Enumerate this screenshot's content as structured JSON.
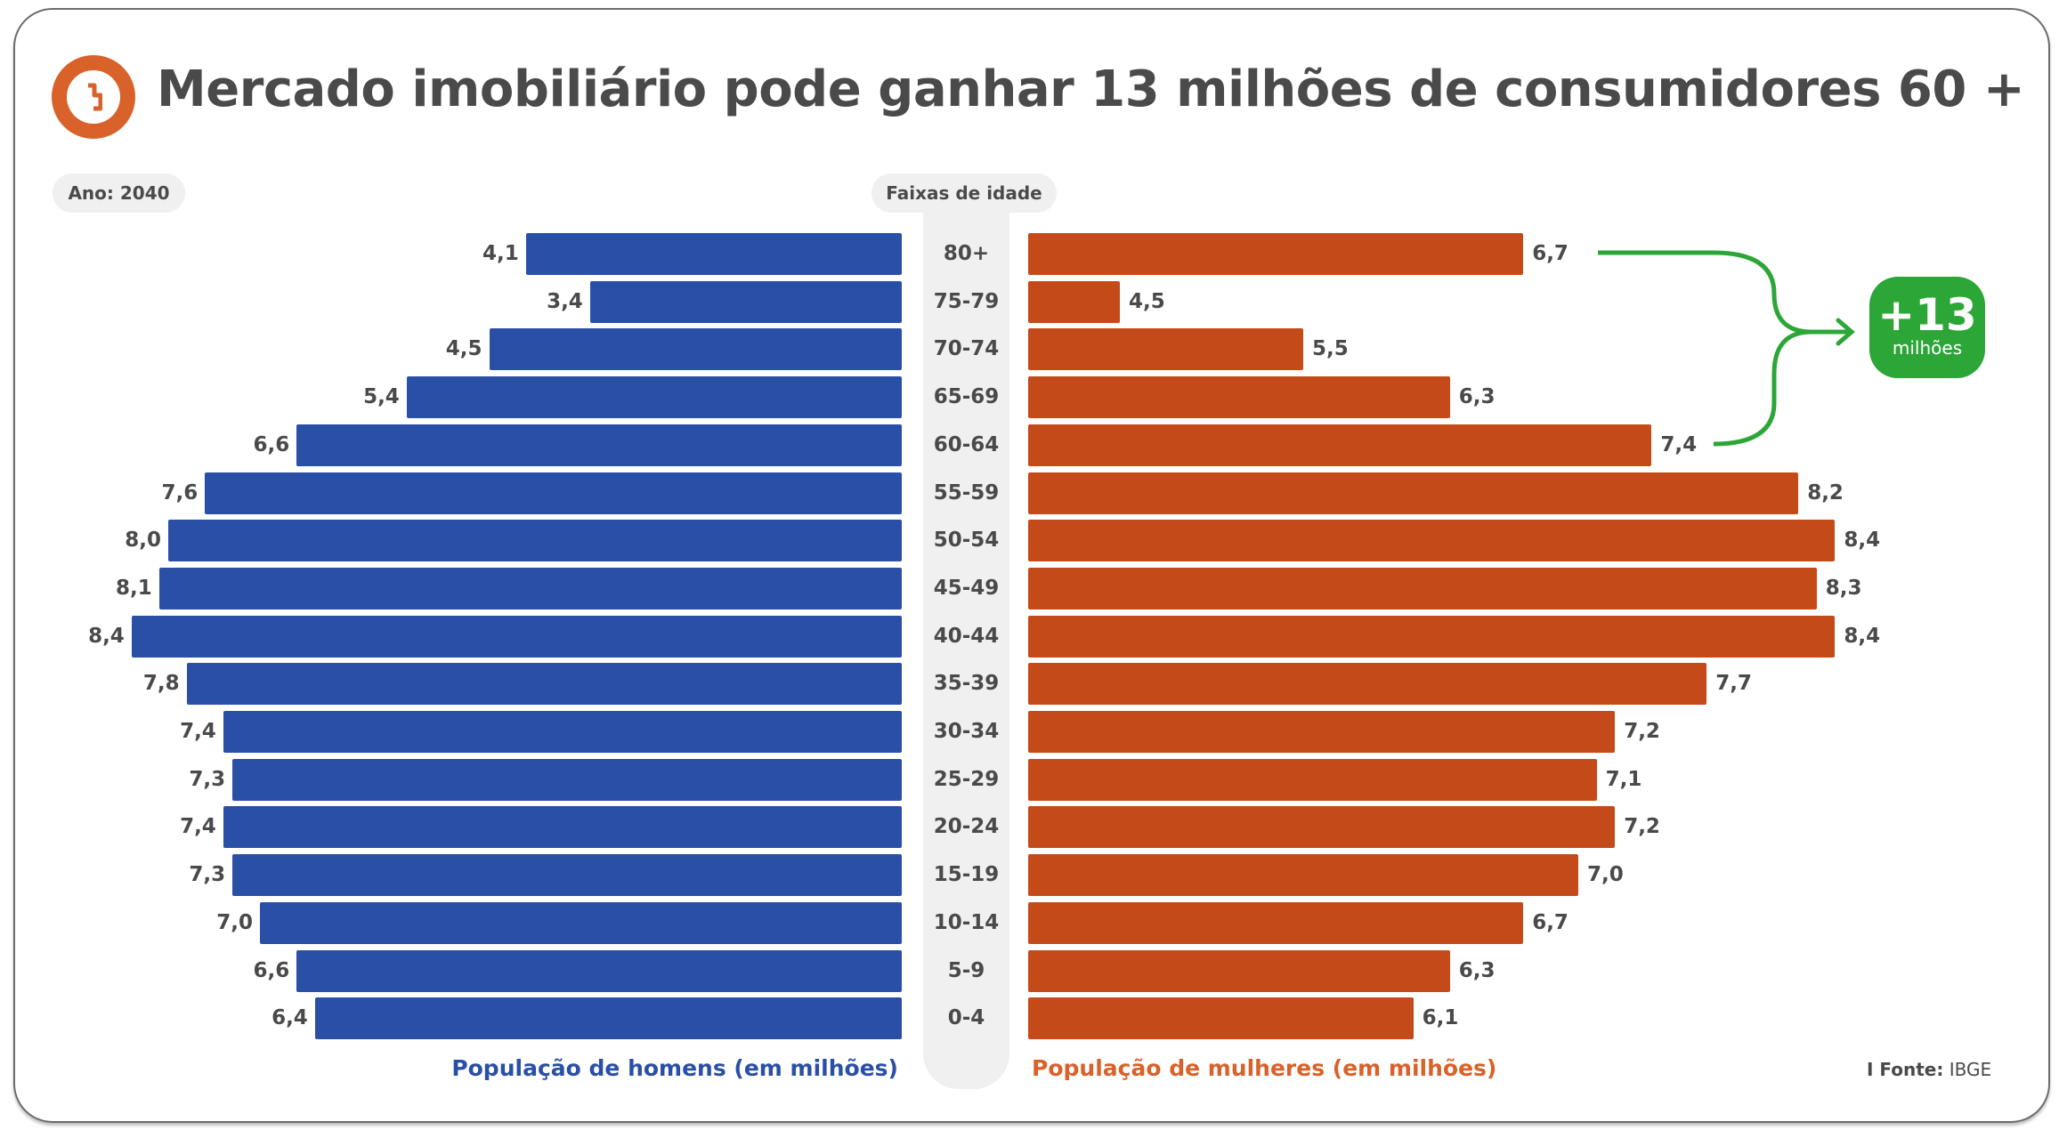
{
  "header": {
    "title": "Mercado imobiliário pode ganhar 13 milhões de consumidores 60 +",
    "logo_icon": "brand-logo-icon"
  },
  "year_label": "Ano: 2040",
  "center_header": "Faixas de idade",
  "annotation": {
    "value": "+13",
    "unit": "milhões",
    "color": "#2BA637"
  },
  "source": {
    "label": "I Fonte:",
    "value": "IBGE"
  },
  "chart_data": {
    "type": "bar",
    "orientation": "horizontal-pyramid",
    "categories": [
      "80+",
      "75-79",
      "70-74",
      "65-69",
      "60-64",
      "55-59",
      "50-54",
      "45-49",
      "40-44",
      "35-39",
      "30-34",
      "25-29",
      "20-24",
      "15-19",
      "10-14",
      "5-9",
      "0-4"
    ],
    "category_labels": [
      "80+",
      "75-79",
      "70-74",
      "65-69",
      "60-64",
      "55-59",
      "50-54",
      "45-49",
      "40-44",
      "35-39",
      "30-34",
      "25-29",
      "20-24",
      "15-19",
      "10-14",
      "5-9",
      "0-4"
    ],
    "series": [
      {
        "name": "População de homens (em milhões)",
        "color": "#2A4FA6",
        "values": [
          4.1,
          3.4,
          4.5,
          5.4,
          6.6,
          7.6,
          8.0,
          8.1,
          8.4,
          7.8,
          7.4,
          7.3,
          7.4,
          7.3,
          7.0,
          6.6,
          6.4
        ],
        "labels": [
          "4,1",
          "3,4",
          "4,5",
          "5,4",
          "6,6",
          "7,6",
          "8,0",
          "8,1",
          "8,4",
          "7,8",
          "7,4",
          "7,3",
          "7,4",
          "7,3",
          "7,0",
          "6,6",
          "6,4"
        ]
      },
      {
        "name": "População de mulheres (em milhões)",
        "color": "#C44B19",
        "values": [
          6.7,
          4.5,
          5.5,
          6.3,
          7.4,
          8.2,
          8.4,
          8.3,
          8.4,
          7.7,
          7.2,
          7.1,
          7.2,
          7.0,
          6.7,
          6.3,
          6.1
        ],
        "labels": [
          "6,7",
          "4,5",
          "5,5",
          "6,3",
          "7,4",
          "8,2",
          "8,4",
          "8,3",
          "8,4",
          "7,7",
          "7,2",
          "7,1",
          "7,2",
          "7,0",
          "6,7",
          "6,3",
          "6,1"
        ]
      }
    ],
    "grid": false,
    "legend": "bottom"
  }
}
